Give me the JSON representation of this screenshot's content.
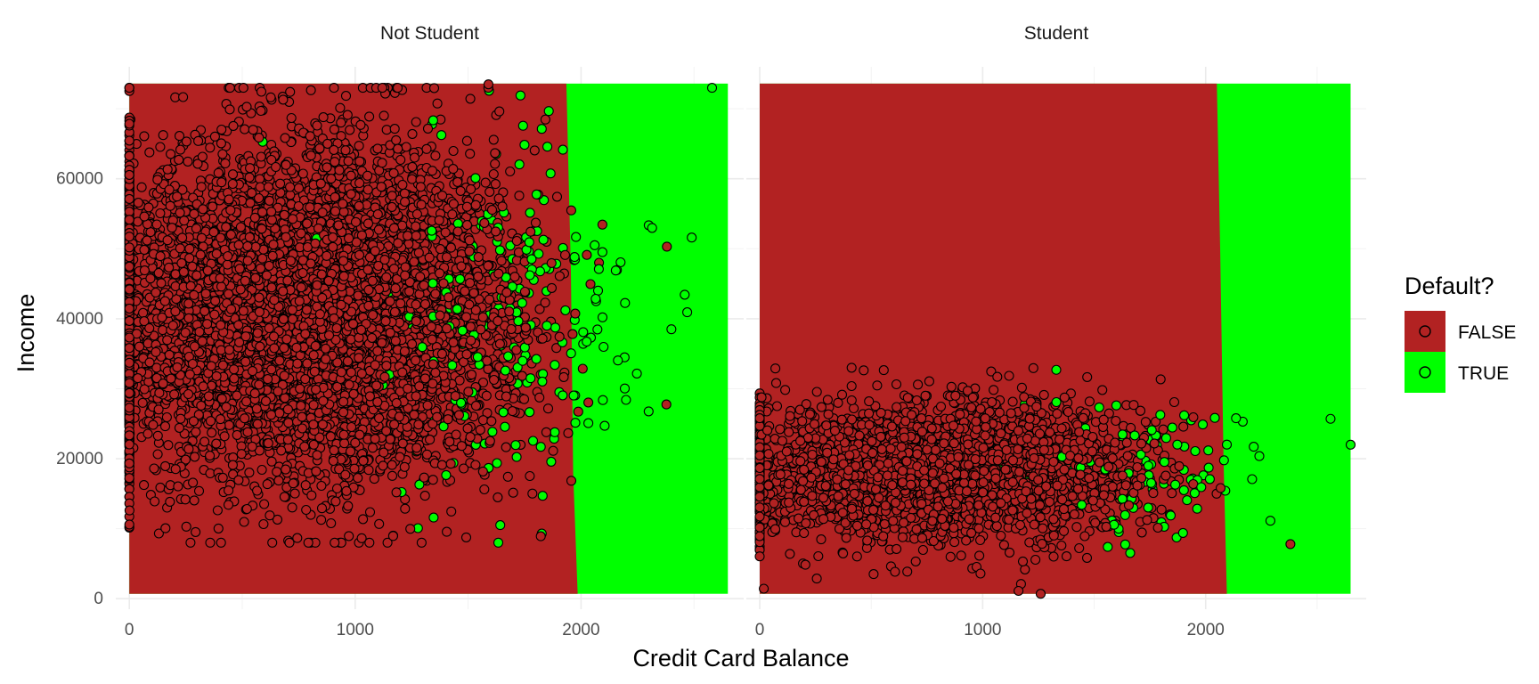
{
  "chart_data": {
    "type": "scatter",
    "subtype": "faceted scatter with decision-region background",
    "facets": [
      "Not Student",
      "Student"
    ],
    "xlabel": "Credit Card Balance",
    "ylabel": "Income",
    "xlim": [
      -60,
      2720
    ],
    "ylim": [
      -1500,
      76000
    ],
    "x_ticks": [
      0,
      1000,
      2000
    ],
    "y_ticks": [
      0,
      20000,
      40000,
      60000
    ],
    "grid": true,
    "legend": {
      "title": "Default?",
      "placement": "right",
      "entries": [
        {
          "label": "FALSE",
          "color": "#B22222"
        },
        {
          "label": "TRUE",
          "color": "#00FF00"
        }
      ]
    },
    "colors": {
      "false_region": "#B22222",
      "true_region": "#00FF00",
      "point_outline": "#000000",
      "grid": "#ebebeb"
    },
    "decision_regions": [
      {
        "facet": "Not Student",
        "x_range": [
          0,
          2650
        ],
        "y_range": [
          700,
          73600
        ],
        "boundary_approx": [
          {
            "y": 73600,
            "x": 1935
          },
          {
            "y": 47000,
            "x": 1955
          },
          {
            "y": 18000,
            "x": 1965
          },
          {
            "y": 700,
            "x": 1985
          }
        ]
      },
      {
        "facet": "Student",
        "x_range": [
          0,
          2650
        ],
        "y_range": [
          700,
          73600
        ],
        "boundary_approx": [
          {
            "y": 73600,
            "x": 2050
          },
          {
            "y": 50000,
            "x": 2065
          },
          {
            "y": 20000,
            "x": 2080
          },
          {
            "y": 700,
            "x": 2095
          }
        ]
      }
    ],
    "points_description": "Approximately 7000 non-student and 3000 student observations; mostly FALSE (red fill) concentrated at lower balances, TRUE (green fill) concentrated at balances above ~1500",
    "notable_points": [
      {
        "facet": "Not Student",
        "x": 1590,
        "y": 73500,
        "default": "FALSE"
      },
      {
        "facet": "Not Student",
        "x": 2380,
        "y": 50300,
        "default": "FALSE"
      },
      {
        "facet": "Not Student",
        "x": 2490,
        "y": 51600,
        "default": "TRUE"
      },
      {
        "facet": "Not Student",
        "x": 2400,
        "y": 38500,
        "default": "TRUE"
      },
      {
        "facet": "Not Student",
        "x": 1830,
        "y": 14700,
        "default": "TRUE"
      },
      {
        "facet": "Not Student",
        "x": 0,
        "y": 10600,
        "default": "FALSE"
      },
      {
        "facet": "Student",
        "x": 2650,
        "y": 22000,
        "default": "TRUE"
      },
      {
        "facet": "Student",
        "x": 2380,
        "y": 7800,
        "default": "FALSE"
      },
      {
        "facet": "Student",
        "x": 1260,
        "y": 700,
        "default": "FALSE"
      },
      {
        "facet": "Student",
        "x": 1330,
        "y": 32700,
        "default": "TRUE"
      },
      {
        "facet": "Student",
        "x": 2560,
        "y": 25700,
        "default": "TRUE"
      }
    ]
  }
}
